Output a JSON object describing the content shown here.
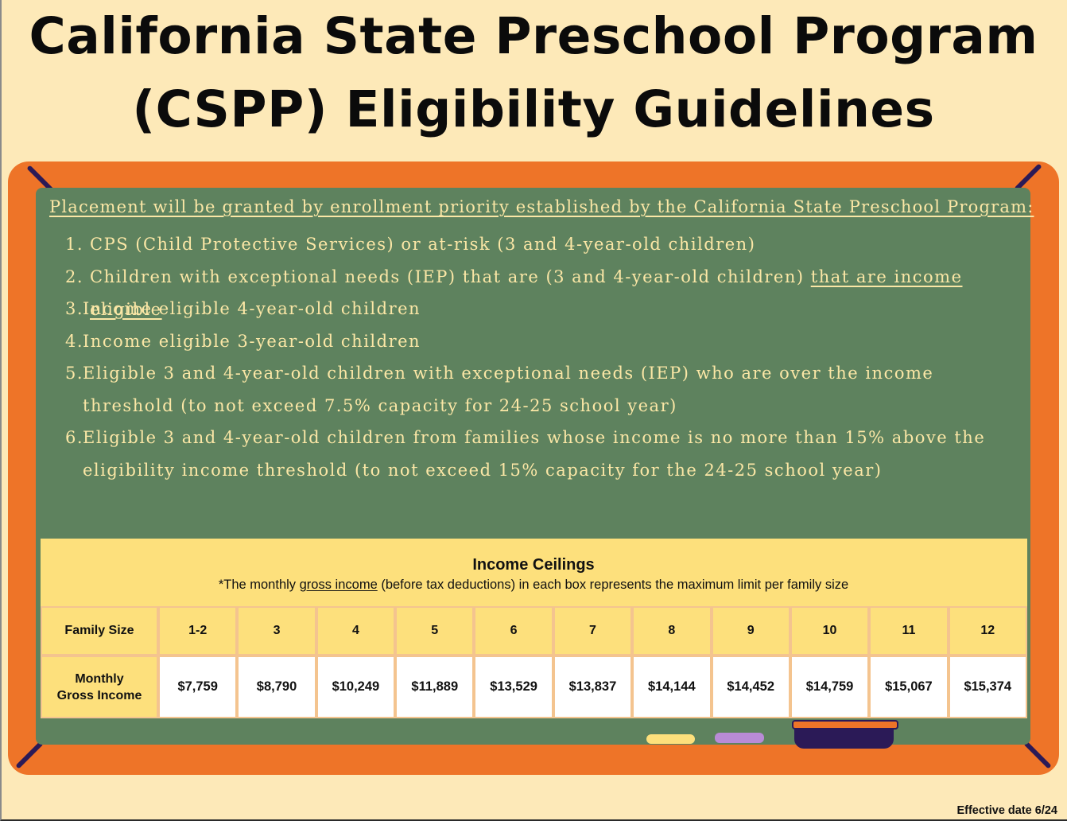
{
  "title": {
    "line1": "California State Preschool Program",
    "line2": "(CSPP) Eligibility Guidelines"
  },
  "priority": {
    "intro": "Placement will be granted by enrollment priority established by the California State Preschool Program:",
    "items": [
      {
        "num": "1.",
        "text": "CPS (Child Protective Services) or at-risk (3 and 4-year-old children)"
      },
      {
        "num": "2.",
        "text": "Children with exceptional needs (IEP) that are (3 and 4-year-old children) ",
        "underlined": "that are income eligible"
      },
      {
        "num": "3.",
        "text": "Income eligible 4-year-old children"
      },
      {
        "num": "4.",
        "text": "Income eligible 3-year-old children"
      },
      {
        "num": "5.",
        "text": "Eligible 3 and 4-year-old children with exceptional needs (IEP) who are over the income threshold (to not exceed 7.5% capacity for 24-25 school year)"
      },
      {
        "num": "6.",
        "text": "Eligible 3 and 4-year-old children from families whose income is no more than 15% above the eligibility income threshold (to not exceed 15% capacity for the 24-25 school year)"
      }
    ]
  },
  "income_table": {
    "title": "Income Ceilings",
    "note_pre": "*The monthly ",
    "note_underlined": "gross income",
    "note_post": " (before tax deductions) in each box represents the maximum limit per family size",
    "row1_label": "Family Size",
    "row2_label_line1": "Monthly",
    "row2_label_line2": "Gross Income",
    "family_sizes": [
      "1-2",
      "3",
      "4",
      "5",
      "6",
      "7",
      "8",
      "9",
      "10",
      "11",
      "12"
    ],
    "monthly_incomes": [
      "$7,759",
      "$8,790",
      "$10,249",
      "$11,889",
      "$13,529",
      "$13,837",
      "$14,144",
      "$14,452",
      "$14,759",
      "$15,067",
      "$15,374"
    ]
  },
  "footer": {
    "effective_date": "Effective date 6/24"
  },
  "colors": {
    "background": "#fde9b8",
    "frame": "#ee7428",
    "board": "#5e825e",
    "chalk_text": "#fbe7a6",
    "table_header": "#fde07c",
    "accent_dark": "#2b1a57"
  }
}
